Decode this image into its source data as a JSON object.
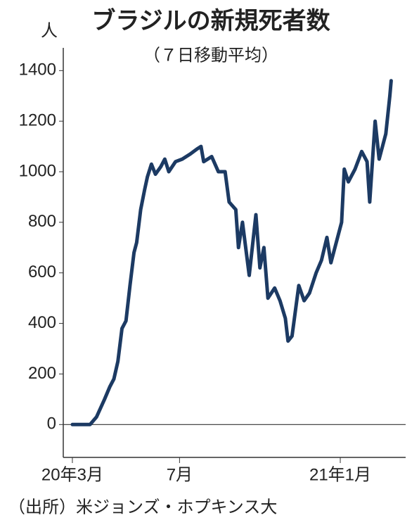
{
  "chart_data": {
    "type": "line",
    "title": "ブラジルの新規死者数",
    "subtitle": "（７日移動平均）",
    "y_label": "人",
    "source": "（出所）米ジョンズ・ホプキンス大",
    "x": [
      0,
      0.3,
      0.66,
      0.7,
      0.9,
      1.2,
      1.4,
      1.55,
      1.7,
      1.85,
      2.0,
      2.15,
      2.3,
      2.4,
      2.55,
      2.7,
      2.8,
      2.95,
      3.1,
      3.3,
      3.45,
      3.6,
      3.85,
      4.1,
      4.4,
      4.65,
      4.8,
      4.9,
      5.2,
      5.45,
      5.7,
      5.85,
      6.1,
      6.2,
      6.35,
      6.6,
      6.85,
      7.0,
      7.15,
      7.3,
      7.55,
      7.75,
      7.95,
      8.05,
      8.2,
      8.45,
      8.65,
      8.85,
      9.1,
      9.3,
      9.5,
      9.65,
      9.85,
      10.05,
      10.15,
      10.3,
      10.55,
      10.8,
      11.0,
      11.1,
      11.3,
      11.45,
      11.7,
      11.85,
      11.9
    ],
    "series": [
      {
        "name": "新規死者数",
        "color": "#1c3a63",
        "values": [
          0,
          0,
          0,
          5,
          30,
          100,
          150,
          180,
          250,
          380,
          410,
          550,
          680,
          720,
          850,
          930,
          980,
          1030,
          990,
          1020,
          1050,
          1000,
          1040,
          1050,
          1070,
          1090,
          1100,
          1040,
          1060,
          1000,
          1000,
          880,
          850,
          700,
          800,
          590,
          830,
          620,
          700,
          500,
          540,
          490,
          420,
          330,
          350,
          550,
          490,
          520,
          600,
          650,
          740,
          640,
          720,
          800,
          1010,
          960,
          1010,
          1080,
          1040,
          880,
          1200,
          1050,
          1150,
          1300,
          1360
        ]
      }
    ],
    "xlim": [
      -0.34,
      12.44
    ],
    "xticks": [
      {
        "value": 0,
        "label": "20年3月"
      },
      {
        "value": 4,
        "label": "7月"
      },
      {
        "value": 10,
        "label": "21年1月"
      }
    ],
    "ylim": [
      -130,
      1490
    ],
    "yticks": [
      0,
      200,
      400,
      600,
      800,
      1000,
      1200,
      1400
    ]
  }
}
